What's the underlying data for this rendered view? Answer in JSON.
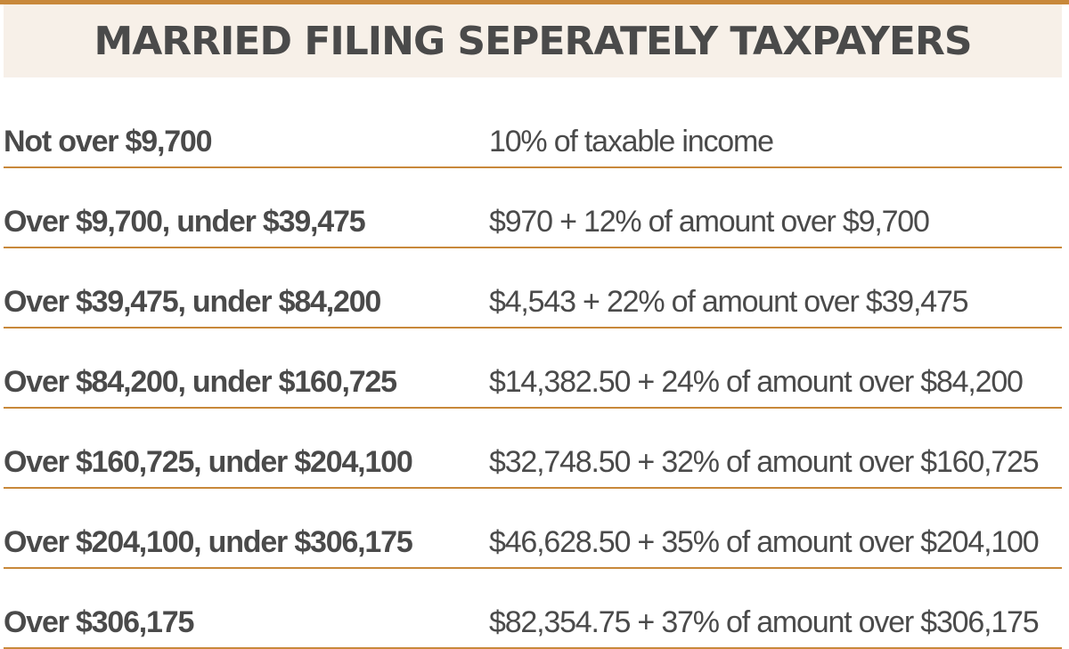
{
  "colors": {
    "accent": "#c8883a",
    "title_band": "#f7f0e8",
    "text": "#4a4a4a"
  },
  "title": "MARRIED FILING SEPERATELY TAXPAYERS",
  "rows": [
    {
      "bracket": "Not over $9,700",
      "rate": "10% of taxable income"
    },
    {
      "bracket": "Over $9,700, under $39,475",
      "rate": "$970 + 12% of amount over $9,700"
    },
    {
      "bracket": "Over $39,475, under $84,200",
      "rate": "$4,543 + 22% of amount over $39,475"
    },
    {
      "bracket": "Over $84,200, under $160,725",
      "rate": "$14,382.50 + 24% of amount over $84,200"
    },
    {
      "bracket": "Over $160,725, under $204,100",
      "rate": "$32,748.50 + 32% of amount over $160,725"
    },
    {
      "bracket": "Over $204,100, under $306,175",
      "rate": "$46,628.50 + 35% of amount over $204,100"
    },
    {
      "bracket": "Over $306,175",
      "rate": "$82,354.75 + 37% of amount over $306,175"
    }
  ]
}
